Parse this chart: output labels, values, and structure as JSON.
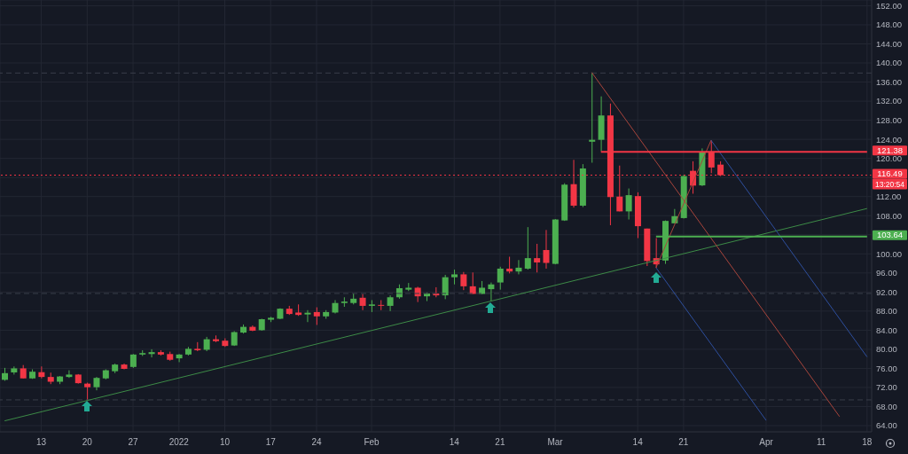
{
  "chart_data": {
    "type": "candlestick",
    "categories": [
      null,
      null,
      null,
      null,
      "13",
      null,
      null,
      null,
      null,
      "20",
      null,
      null,
      null,
      null,
      "27",
      null,
      null,
      null,
      null,
      "2022",
      null,
      null,
      null,
      null,
      "10",
      null,
      null,
      null,
      null,
      "17",
      null,
      null,
      null,
      null,
      "24",
      null,
      null,
      null,
      null,
      null,
      "Feb",
      null,
      null,
      null,
      null,
      null,
      null,
      null,
      null,
      "14",
      null,
      null,
      null,
      null,
      "21",
      null,
      null,
      null,
      null,
      null,
      "Mar",
      null,
      null,
      null,
      null,
      null,
      null,
      null,
      null,
      "14",
      null,
      null,
      null,
      null,
      "21",
      null,
      null,
      null,
      null,
      null,
      null,
      null,
      null,
      "Apr",
      null,
      null,
      null,
      null,
      null,
      "11",
      null,
      null,
      null,
      null,
      "18"
    ],
    "ohlc": [
      [
        73.6,
        76.1,
        73.4,
        75.0
      ],
      [
        75.15,
        76.4,
        74.7,
        76.0
      ],
      [
        76.0,
        76.7,
        73.9,
        73.9
      ],
      [
        73.9,
        75.8,
        73.8,
        75.3
      ],
      [
        75.2,
        76.4,
        73.9,
        74.2
      ],
      [
        74.2,
        75.1,
        72.7,
        73.2
      ],
      [
        73.2,
        74.4,
        72.7,
        74.3
      ],
      [
        74.2,
        75.6,
        74.0,
        74.7
      ],
      [
        74.7,
        74.8,
        72.8,
        72.9
      ],
      [
        72.8,
        73.0,
        69.3,
        72.05
      ],
      [
        72.05,
        74.2,
        71.4,
        74.0
      ],
      [
        73.9,
        75.8,
        73.7,
        75.6
      ],
      [
        75.4,
        77.0,
        75.0,
        76.8
      ],
      [
        76.8,
        77.0,
        75.8,
        75.9
      ],
      [
        76.3,
        79.0,
        76.1,
        78.9
      ],
      [
        78.9,
        79.8,
        78.6,
        79.2
      ],
      [
        79.0,
        80.0,
        78.3,
        79.4
      ],
      [
        79.4,
        79.8,
        78.7,
        78.9
      ],
      [
        79.0,
        79.5,
        77.6,
        77.8
      ],
      [
        78.1,
        79.0,
        77.3,
        78.9
      ],
      [
        78.9,
        80.5,
        78.7,
        80.1
      ],
      [
        80.1,
        81.5,
        79.6,
        79.8
      ],
      [
        79.9,
        82.6,
        79.6,
        82.1
      ],
      [
        82.1,
        82.9,
        81.5,
        81.7
      ],
      [
        81.8,
        82.3,
        80.5,
        80.7
      ],
      [
        80.8,
        83.8,
        80.7,
        83.6
      ],
      [
        83.5,
        85.2,
        83.3,
        84.7
      ],
      [
        84.7,
        85.0,
        83.8,
        83.9
      ],
      [
        84.0,
        86.4,
        83.9,
        86.3
      ],
      [
        86.2,
        86.8,
        85.7,
        86.6
      ],
      [
        86.4,
        88.6,
        86.3,
        88.5
      ],
      [
        88.5,
        89.1,
        87.2,
        87.4
      ],
      [
        87.7,
        89.4,
        87.0,
        87.2
      ],
      [
        87.3,
        88.2,
        85.7,
        87.66
      ],
      [
        87.8,
        88.8,
        85.1,
        86.9
      ],
      [
        86.9,
        88.2,
        86.4,
        87.8
      ],
      [
        87.7,
        90.3,
        87.5,
        89.7
      ],
      [
        89.7,
        90.9,
        88.9,
        90.0
      ],
      [
        89.7,
        91.7,
        89.4,
        90.6
      ],
      [
        90.8,
        91.6,
        88.2,
        89.1
      ],
      [
        89.1,
        90.3,
        87.8,
        89.4
      ],
      [
        89.3,
        90.3,
        88.2,
        89.2
      ],
      [
        89.1,
        91.3,
        88.0,
        90.9
      ],
      [
        90.9,
        93.6,
        90.6,
        92.8
      ],
      [
        92.5,
        93.9,
        92.2,
        92.9
      ],
      [
        92.9,
        93.1,
        89.9,
        91.1
      ],
      [
        91.1,
        91.9,
        90.1,
        91.7
      ],
      [
        91.7,
        93.0,
        90.9,
        91.3
      ],
      [
        91.3,
        95.6,
        90.5,
        95.1
      ],
      [
        95.1,
        96.7,
        93.6,
        95.7
      ],
      [
        95.7,
        96.2,
        92.4,
        93.2
      ],
      [
        93.2,
        96.1,
        91.6,
        91.6
      ],
      [
        91.6,
        94.3,
        91.6,
        92.9
      ],
      [
        92.6,
        94.0,
        90.1,
        93.6
      ],
      [
        94.0,
        97.3,
        92.5,
        96.9
      ],
      [
        96.9,
        99.4,
        95.9,
        96.3
      ],
      [
        96.3,
        98.7,
        95.7,
        97.1
      ],
      [
        96.9,
        105.6,
        96.7,
        99.1
      ],
      [
        99.1,
        102.1,
        96.1,
        98.2
      ],
      [
        100.8,
        105.0,
        96.9,
        98.1
      ],
      [
        97.9,
        107.3,
        97.8,
        107.2
      ],
      [
        107.0,
        114.8,
        106.9,
        114.5
      ],
      [
        114.6,
        119.7,
        109.7,
        110.1
      ],
      [
        110.1,
        118.8,
        109.8,
        117.9
      ],
      [
        123.5,
        138.0,
        119.1,
        123.9
      ],
      [
        123.9,
        133.0,
        121.5,
        129.0
      ],
      [
        129.0,
        131.5,
        106.0,
        111.9
      ],
      [
        112.0,
        118.5,
        108.9,
        108.9
      ],
      [
        108.9,
        113.7,
        107.2,
        112.3
      ],
      [
        112.1,
        112.9,
        103.3,
        105.8
      ],
      [
        105.3,
        105.3,
        97.45,
        98.5
      ],
      [
        99.1,
        103.3,
        97.1,
        97.8
      ],
      [
        98.6,
        107.0,
        97.9,
        106.9
      ],
      [
        106.4,
        109.4,
        106.4,
        107.9
      ],
      [
        107.5,
        116.6,
        107.4,
        116.3
      ],
      [
        117.4,
        119.4,
        112.6,
        114.3
      ],
      [
        114.35,
        122.1,
        114.2,
        121.3
      ],
      [
        121.4,
        123.8,
        116.9,
        118.1
      ],
      [
        118.7,
        119.4,
        116.3,
        116.49
      ],
      null,
      null,
      null,
      null,
      null,
      null,
      null,
      null,
      null,
      null,
      null,
      null,
      null,
      null,
      null,
      null
    ],
    "colors": [
      "#4caf50",
      "#4caf50",
      "#f23645",
      "#4caf50",
      "#f23645",
      "#f23645",
      "#4caf50",
      "#4caf50",
      "#f23645",
      "#f23645",
      "#4caf50",
      "#4caf50",
      "#4caf50",
      "#f23645",
      "#4caf50",
      "#4caf50",
      "#4caf50",
      "#f23645",
      "#f23645",
      "#4caf50",
      "#4caf50",
      "#f23645",
      "#4caf50",
      "#f23645",
      "#f23645",
      "#4caf50",
      "#4caf50",
      "#f23645",
      "#4caf50",
      "#4caf50",
      "#4caf50",
      "#f23645",
      "#f23645",
      "#4caf50",
      "#f23645",
      "#4caf50",
      "#4caf50",
      "#4caf50",
      "#4caf50",
      "#f23645",
      "#4caf50",
      "#f23645",
      "#4caf50",
      "#4caf50",
      "#4caf50",
      "#f23645",
      "#4caf50",
      "#f23645",
      "#4caf50",
      "#4caf50",
      "#f23645",
      "#f23645",
      "#4caf50",
      "#4caf50",
      "#4caf50",
      "#f23645",
      "#4caf50",
      "#4caf50",
      "#f23645",
      "#f23645",
      "#4caf50",
      "#4caf50",
      "#f23645",
      "#4caf50",
      "#4caf50",
      "#4caf50",
      "#f23645",
      "#f23645",
      "#4caf50",
      "#f23645",
      "#f23645",
      "#f23645",
      "#4caf50",
      "#4caf50",
      "#4caf50",
      "#f23645",
      "#4caf50",
      "#f23645",
      "#f23645",
      null,
      null,
      null,
      null,
      null,
      null,
      null,
      null,
      null,
      null,
      null,
      null,
      null,
      null,
      null,
      null
    ],
    "series": [
      {
        "type": "line",
        "color": "#3d8b47",
        "values": [
          65.0,
          null,
          null,
          null,
          null,
          null,
          null,
          null,
          null,
          null,
          null,
          null,
          null,
          null,
          null,
          null,
          null,
          null,
          null,
          null,
          null,
          null,
          null,
          null,
          null,
          null,
          null,
          null,
          null,
          null,
          null,
          null,
          null,
          null,
          null,
          null,
          null,
          null,
          null,
          null,
          null,
          null,
          null,
          null,
          null,
          null,
          null,
          null,
          null,
          null,
          null,
          null,
          null,
          null,
          null,
          null,
          null,
          null,
          null,
          null,
          null,
          null,
          null,
          null,
          null,
          null,
          null,
          null,
          null,
          null,
          null,
          null,
          null,
          null,
          null,
          null,
          null,
          null,
          null,
          null,
          null,
          null,
          null,
          null,
          null,
          null,
          null,
          null,
          null,
          null,
          null,
          null,
          null,
          null,
          109.5
        ]
      },
      {
        "type": "line",
        "color": "#a8453c",
        "values": [
          null,
          null,
          null,
          null,
          null,
          null,
          null,
          null,
          null,
          null,
          null,
          null,
          null,
          null,
          null,
          null,
          null,
          null,
          null,
          null,
          null,
          null,
          null,
          null,
          null,
          null,
          null,
          null,
          null,
          null,
          null,
          null,
          null,
          null,
          null,
          null,
          null,
          null,
          null,
          null,
          null,
          null,
          null,
          null,
          null,
          null,
          null,
          null,
          null,
          null,
          null,
          null,
          null,
          null,
          null,
          null,
          null,
          null,
          null,
          null,
          null,
          null,
          null,
          null,
          138.0,
          null,
          null,
          null,
          null,
          null,
          null,
          null,
          null,
          null,
          null,
          null,
          null,
          null,
          null,
          null,
          null,
          null,
          null,
          null,
          null,
          null,
          null,
          null,
          null,
          null,
          null,
          65.9,
          null,
          null,
          null
        ]
      },
      {
        "type": "line",
        "color": "#a8453c",
        "values": [
          null,
          null,
          null,
          null,
          null,
          null,
          null,
          null,
          null,
          null,
          null,
          null,
          null,
          null,
          null,
          null,
          null,
          null,
          null,
          null,
          null,
          null,
          null,
          null,
          null,
          null,
          null,
          null,
          null,
          null,
          null,
          null,
          null,
          null,
          null,
          null,
          null,
          null,
          null,
          null,
          null,
          null,
          null,
          null,
          null,
          null,
          null,
          null,
          null,
          null,
          null,
          null,
          null,
          null,
          null,
          null,
          null,
          null,
          null,
          null,
          null,
          null,
          null,
          null,
          null,
          null,
          null,
          null,
          null,
          null,
          null,
          97.1,
          null,
          null,
          null,
          null,
          null,
          123.8,
          null,
          null,
          null,
          null,
          null,
          null,
          null,
          null,
          null,
          null,
          null,
          null,
          null,
          null,
          null,
          null,
          null
        ]
      },
      {
        "type": "line",
        "color": "#2e4f9e",
        "values": [
          null,
          null,
          null,
          null,
          null,
          null,
          null,
          null,
          null,
          null,
          null,
          null,
          null,
          null,
          null,
          null,
          null,
          null,
          null,
          null,
          null,
          null,
          null,
          null,
          null,
          null,
          null,
          null,
          null,
          null,
          null,
          null,
          null,
          null,
          null,
          null,
          null,
          null,
          null,
          null,
          null,
          null,
          null,
          null,
          null,
          null,
          null,
          null,
          null,
          null,
          null,
          null,
          null,
          null,
          null,
          null,
          null,
          null,
          null,
          null,
          null,
          null,
          null,
          null,
          null,
          null,
          null,
          null,
          null,
          null,
          null,
          97.1,
          null,
          null,
          null,
          null,
          null,
          null,
          null,
          null,
          null,
          null,
          null,
          65.1,
          null,
          null,
          null,
          null,
          null,
          null,
          null,
          null,
          null,
          null,
          null
        ]
      },
      {
        "type": "line",
        "color": "#2e4f9e",
        "values": [
          null,
          null,
          null,
          null,
          null,
          null,
          null,
          null,
          null,
          null,
          null,
          null,
          null,
          null,
          null,
          null,
          null,
          null,
          null,
          null,
          null,
          null,
          null,
          null,
          null,
          null,
          null,
          null,
          null,
          null,
          null,
          null,
          null,
          null,
          null,
          null,
          null,
          null,
          null,
          null,
          null,
          null,
          null,
          null,
          null,
          null,
          null,
          null,
          null,
          null,
          null,
          null,
          null,
          null,
          null,
          null,
          null,
          null,
          null,
          null,
          null,
          null,
          null,
          null,
          null,
          null,
          null,
          null,
          null,
          null,
          null,
          null,
          null,
          null,
          null,
          null,
          null,
          123.8,
          null,
          null,
          null,
          null,
          null,
          null,
          null,
          null,
          null,
          null,
          null,
          null,
          null,
          null,
          null,
          null,
          78.4
        ]
      },
      {
        "type": "line",
        "color": "#f23645",
        "values": [
          null,
          null,
          null,
          null,
          null,
          null,
          null,
          null,
          null,
          null,
          null,
          null,
          null,
          null,
          null,
          null,
          null,
          null,
          null,
          null,
          null,
          null,
          null,
          null,
          null,
          null,
          null,
          null,
          null,
          null,
          null,
          null,
          null,
          null,
          null,
          null,
          null,
          null,
          null,
          null,
          null,
          null,
          null,
          null,
          null,
          null,
          null,
          null,
          null,
          null,
          null,
          null,
          null,
          null,
          null,
          null,
          null,
          null,
          null,
          null,
          null,
          null,
          null,
          null,
          null,
          121.38,
          null,
          null,
          null,
          null,
          null,
          null,
          null,
          null,
          null,
          null,
          null,
          null,
          null,
          null,
          null,
          null,
          null,
          null,
          null,
          null,
          null,
          null,
          null,
          null,
          null,
          null,
          null,
          null,
          121.38
        ]
      },
      {
        "type": "line",
        "color": "#4caf50",
        "values": [
          null,
          null,
          null,
          null,
          null,
          null,
          null,
          null,
          null,
          null,
          null,
          null,
          null,
          null,
          null,
          null,
          null,
          null,
          null,
          null,
          null,
          null,
          null,
          null,
          null,
          null,
          null,
          null,
          null,
          null,
          null,
          null,
          null,
          null,
          null,
          null,
          null,
          null,
          null,
          null,
          null,
          null,
          null,
          null,
          null,
          null,
          null,
          null,
          null,
          null,
          null,
          null,
          null,
          null,
          null,
          null,
          null,
          null,
          null,
          null,
          null,
          null,
          null,
          null,
          null,
          null,
          null,
          null,
          null,
          null,
          null,
          103.64,
          null,
          null,
          null,
          null,
          null,
          null,
          null,
          null,
          null,
          null,
          null,
          null,
          null,
          null,
          null,
          null,
          null,
          null,
          null,
          null,
          null,
          null,
          103.64
        ]
      }
    ],
    "ref_lines": [
      {
        "axis": "y",
        "value": 116.49,
        "label": "116.49",
        "color": "#f23645",
        "line_style": "dotted"
      },
      {
        "axis": "y",
        "value": 137.9,
        "color": "#3a3e4a",
        "line_style": "dashed"
      },
      {
        "axis": "y",
        "value": 91.7,
        "color": "#3a3e4a",
        "line_style": "dashed"
      },
      {
        "axis": "y",
        "value": 69.4,
        "color": "#3a3e4a",
        "line_style": "dashed"
      }
    ],
    "annotations": [
      "121.38",
      "103.64",
      "13:20:54"
    ],
    "ylim": [
      62.7,
      153.2
    ],
    "yticks": [
      {
        "value": 64,
        "label": "64.00"
      },
      {
        "value": 68,
        "label": "68.00"
      },
      {
        "value": 72,
        "label": "72.00"
      },
      {
        "value": 76,
        "label": "76.00"
      },
      {
        "value": 80,
        "label": "80.00"
      },
      {
        "value": 84,
        "label": "84.00"
      },
      {
        "value": 88,
        "label": "88.00"
      },
      {
        "value": 92,
        "label": "92.00"
      },
      {
        "value": 96,
        "label": "96.00"
      },
      {
        "value": 100,
        "label": "100.00"
      },
      {
        "value": 104,
        "label": null
      },
      {
        "value": 108,
        "label": "108.00"
      },
      {
        "value": 112,
        "label": "112.00"
      },
      {
        "value": 116,
        "label": null
      },
      {
        "value": 120,
        "label": "120.00"
      },
      {
        "value": 124,
        "label": "124.00"
      },
      {
        "value": 128,
        "label": "128.00"
      },
      {
        "value": 132,
        "label": "132.00"
      },
      {
        "value": 136,
        "label": "136.00"
      },
      {
        "value": 140,
        "label": "140.00"
      },
      {
        "value": 144,
        "label": "144.00"
      },
      {
        "value": 148,
        "label": "148.00"
      },
      {
        "value": 152,
        "label": "152.00"
      }
    ],
    "grid": true
  }
}
